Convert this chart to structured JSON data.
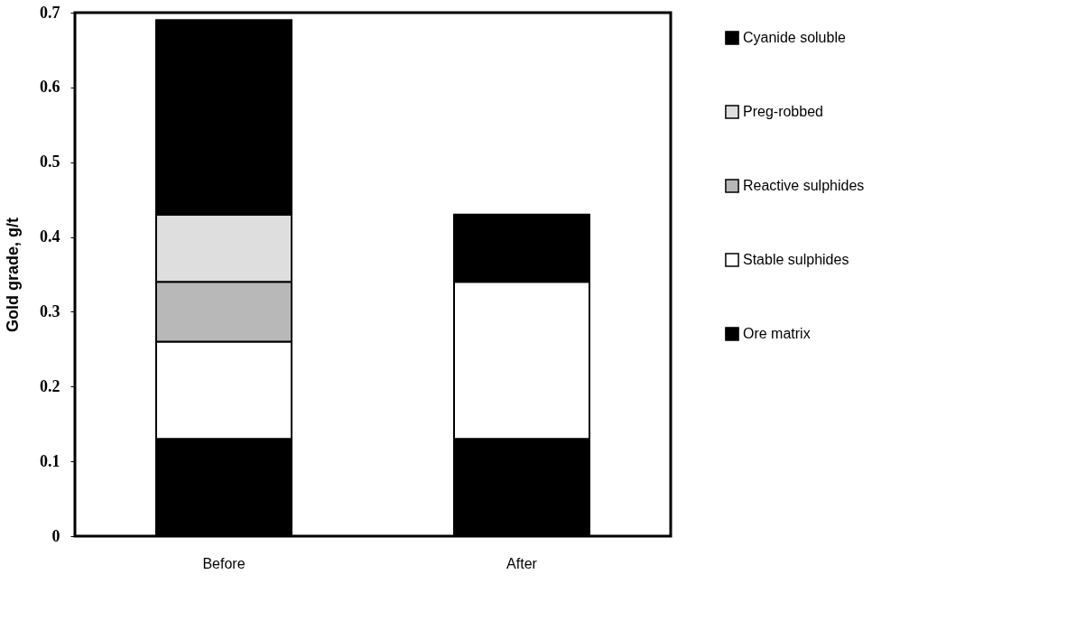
{
  "chart_data": {
    "type": "bar",
    "stacked": true,
    "ylabel": "Gold grade, g/t",
    "categories": [
      "Before",
      "After"
    ],
    "series": [
      {
        "name": "Ore matrix",
        "color": "#000000",
        "values": [
          0.13,
          0.13
        ]
      },
      {
        "name": "Stable sulphides",
        "color": "#ffffff",
        "values": [
          0.13,
          0.21
        ]
      },
      {
        "name": "Reactive sulphides",
        "color": "#b8b8b8",
        "values": [
          0.08,
          null
        ]
      },
      {
        "name": "Preg-robbed",
        "color": "#dedede",
        "values": [
          0.09,
          null
        ]
      },
      {
        "name": "Cyanide soluble",
        "color": "#000000",
        "values": [
          0.26,
          0.09
        ]
      }
    ],
    "ylim": [
      0,
      0.7
    ],
    "yticks": [
      0,
      0.1,
      0.2,
      0.3,
      0.4,
      0.5,
      0.6,
      0.7
    ],
    "grid": false,
    "legend": "right"
  }
}
